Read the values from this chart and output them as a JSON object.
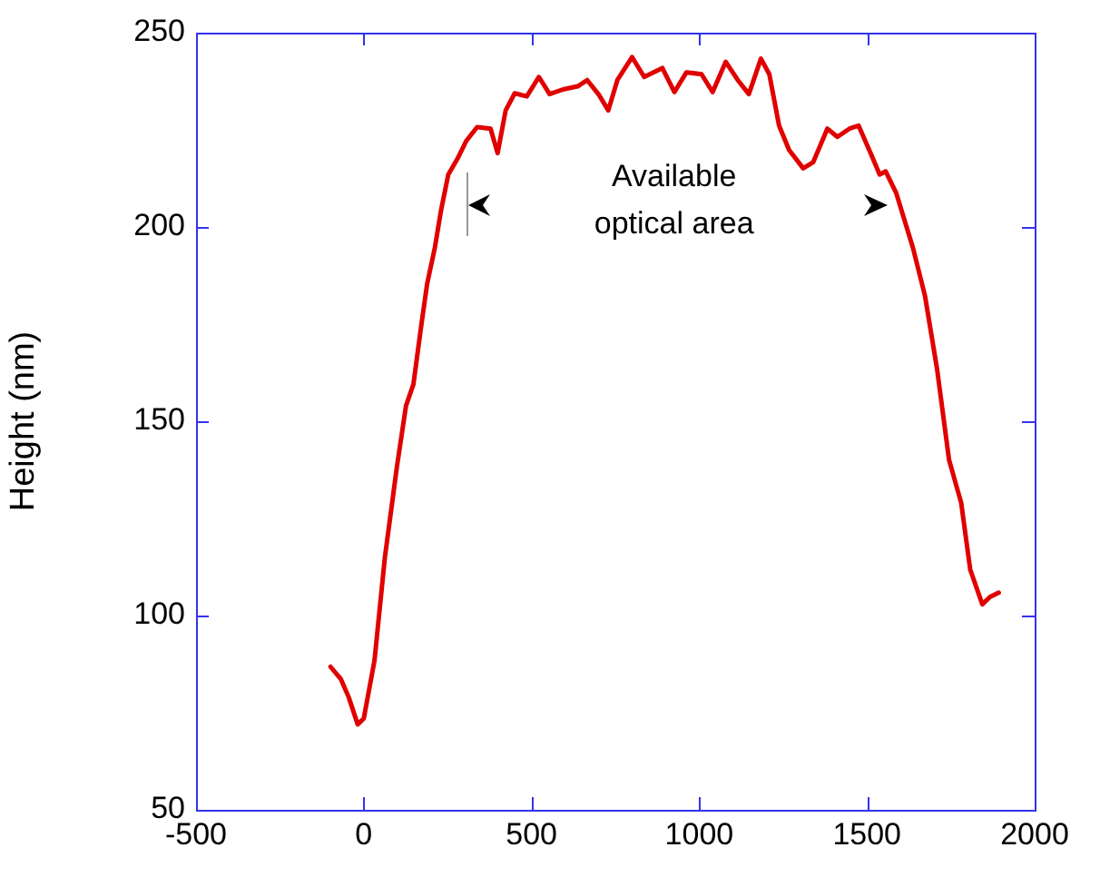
{
  "chart_data": {
    "type": "line",
    "ylabel": "Height (nm)",
    "annotations": [
      "Available\noptical area"
    ],
    "xlim": [
      -500,
      2000
    ],
    "xticks": [
      -500,
      0,
      500,
      1000,
      1500,
      2000
    ],
    "ylim": [
      50,
      250
    ],
    "yticks": [
      50,
      100,
      150,
      200,
      250
    ],
    "marker": "none",
    "line_style": "solid",
    "series": [
      {
        "color": "#e00000",
        "x": [
          -99,
          -68,
          -45,
          -18,
          0,
          32,
          63,
          99,
          126,
          148,
          171,
          189,
          212,
          230,
          252,
          279,
          306,
          338,
          378,
          399,
          423,
          450,
          486,
          522,
          554,
          594,
          638,
          666,
          702,
          729,
          756,
          800,
          836,
          890,
          926,
          962,
          1007,
          1040,
          1079,
          1115,
          1148,
          1184,
          1209,
          1238,
          1268,
          1310,
          1340,
          1382,
          1412,
          1448,
          1475,
          1511,
          1538,
          1556,
          1587,
          1637,
          1673,
          1709,
          1745,
          1781,
          1808,
          1844,
          1867,
          1893
        ],
        "values": [
          86.8,
          83.6,
          79,
          72,
          73.5,
          88.4,
          115,
          138.4,
          154,
          159.5,
          174.4,
          185.4,
          194.7,
          204.1,
          213.5,
          217.5,
          222.2,
          225.7,
          225.3,
          219,
          230,
          234.4,
          233.6,
          238.6,
          234.2,
          235.4,
          236.2,
          237.8,
          233.9,
          230,
          237.8,
          243.7,
          238.6,
          240.9,
          234.7,
          239.8,
          239.3,
          234.7,
          242.5,
          237.8,
          234.2,
          243.3,
          239.3,
          226.1,
          219.8,
          215.1,
          216.7,
          225.3,
          223.2,
          225.3,
          226.1,
          219,
          213.5,
          214.3,
          208.8,
          194.7,
          182.3,
          163.5,
          140,
          129,
          111.8,
          102.9,
          104.8,
          105.9
        ]
      }
    ]
  }
}
